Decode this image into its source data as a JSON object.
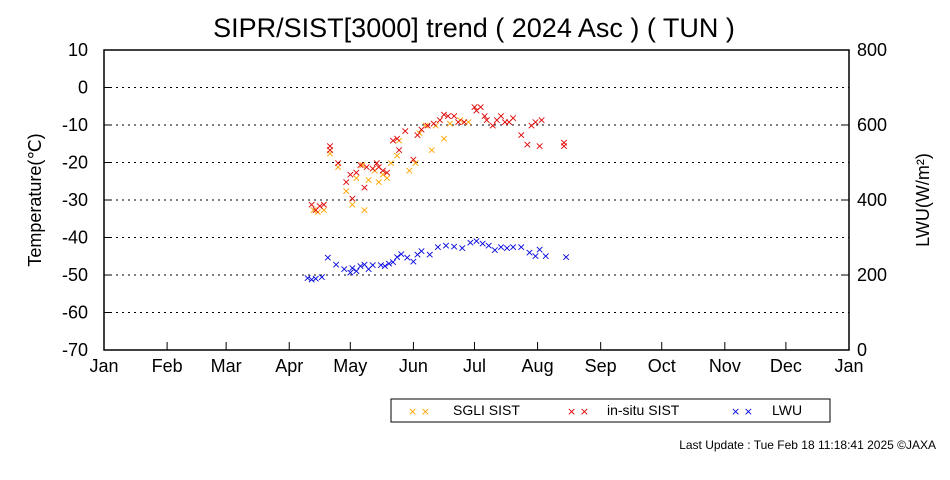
{
  "chart_data": {
    "type": "scatter",
    "title": "SIPR/SIST[3000] trend ( 2024 Asc ) ( TUN )",
    "ylabel": "Temperature(℃)",
    "y2label": "LWU(W/m²)",
    "ylim": [
      -70,
      10
    ],
    "y2lim": [
      0,
      800
    ],
    "yticks": [
      "10",
      "0",
      "-10",
      "-20",
      "-30",
      "-40",
      "-50",
      "-60",
      "-70"
    ],
    "y2ticks": [
      "800",
      "600",
      "400",
      "200",
      "0"
    ],
    "xlim": [
      "2024-01-01",
      "2025-01-01"
    ],
    "xticks": [
      {
        "label": "Jan",
        "date": "2024-01-01"
      },
      {
        "label": "Feb",
        "date": "2024-02-01"
      },
      {
        "label": "Mar",
        "date": "2024-03-01"
      },
      {
        "label": "Apr",
        "date": "2024-04-01"
      },
      {
        "label": "May",
        "date": "2024-05-01"
      },
      {
        "label": "Jun",
        "date": "2024-06-01"
      },
      {
        "label": "Jul",
        "date": "2024-07-01"
      },
      {
        "label": "Aug",
        "date": "2024-08-01"
      },
      {
        "label": "Sep",
        "date": "2024-09-01"
      },
      {
        "label": "Oct",
        "date": "2024-10-01"
      },
      {
        "label": "Nov",
        "date": "2024-11-01"
      },
      {
        "label": "Dec",
        "date": "2024-12-01"
      },
      {
        "label": "Jan",
        "date": "2025-01-01"
      }
    ],
    "grid": "horizontal dotted",
    "legend_position": "bottom",
    "marker": "×",
    "series": [
      {
        "name": "SGLI SIST",
        "color": "#ffa500",
        "axis": "left",
        "points": [
          [
            "2024-04-13",
            -32.5
          ],
          [
            "2024-04-15",
            -33
          ],
          [
            "2024-04-18",
            -32.5
          ],
          [
            "2024-04-21",
            -17.5
          ],
          [
            "2024-04-25",
            -21
          ],
          [
            "2024-04-29",
            -27.5
          ],
          [
            "2024-05-02",
            -31
          ],
          [
            "2024-05-04",
            -24
          ],
          [
            "2024-05-07",
            -20.5
          ],
          [
            "2024-05-08",
            -32.5
          ],
          [
            "2024-05-10",
            -24.5
          ],
          [
            "2024-05-13",
            -22
          ],
          [
            "2024-05-15",
            -25
          ],
          [
            "2024-05-17",
            -23
          ],
          [
            "2024-05-19",
            -24
          ],
          [
            "2024-05-21",
            -20
          ],
          [
            "2024-05-24",
            -18
          ],
          [
            "2024-05-25",
            -14
          ],
          [
            "2024-05-30",
            -22
          ],
          [
            "2024-06-02",
            -20
          ],
          [
            "2024-06-04",
            -12
          ],
          [
            "2024-06-07",
            -10
          ],
          [
            "2024-06-10",
            -16.5
          ],
          [
            "2024-06-12",
            -10
          ],
          [
            "2024-06-16",
            -13.5
          ],
          [
            "2024-06-19",
            -9.5
          ],
          [
            "2024-06-24",
            -8.5
          ],
          [
            "2024-06-28",
            -9
          ]
        ]
      },
      {
        "name": "in-situ SIST",
        "color": "#e00000",
        "axis": "left",
        "points": [
          [
            "2024-04-12",
            -31
          ],
          [
            "2024-04-14",
            -32.5
          ],
          [
            "2024-04-16",
            -31.5
          ],
          [
            "2024-04-18",
            -31
          ],
          [
            "2024-04-21",
            -16.5
          ],
          [
            "2024-04-21",
            -15.5
          ],
          [
            "2024-04-25",
            -20
          ],
          [
            "2024-04-29",
            -25
          ],
          [
            "2024-05-01",
            -23
          ],
          [
            "2024-05-02",
            -29.5
          ],
          [
            "2024-05-04",
            -22.5
          ],
          [
            "2024-05-06",
            -20.5
          ],
          [
            "2024-05-08",
            -26.5
          ],
          [
            "2024-05-09",
            -21
          ],
          [
            "2024-05-12",
            -21.5
          ],
          [
            "2024-05-14",
            -20
          ],
          [
            "2024-05-15",
            -21
          ],
          [
            "2024-05-17",
            -22
          ],
          [
            "2024-05-19",
            -22.5
          ],
          [
            "2024-05-22",
            -14
          ],
          [
            "2024-05-24",
            -13.5
          ],
          [
            "2024-05-25",
            -16.5
          ],
          [
            "2024-05-28",
            -11.5
          ],
          [
            "2024-06-01",
            -19
          ],
          [
            "2024-06-03",
            -12.5
          ],
          [
            "2024-06-05",
            -11
          ],
          [
            "2024-06-08",
            -10
          ],
          [
            "2024-06-11",
            -9.5
          ],
          [
            "2024-06-14",
            -8.5
          ],
          [
            "2024-06-16",
            -7
          ],
          [
            "2024-06-18",
            -7.5
          ],
          [
            "2024-06-21",
            -7.5
          ],
          [
            "2024-06-23",
            -9
          ],
          [
            "2024-06-26",
            -9
          ],
          [
            "2024-07-01",
            -5
          ],
          [
            "2024-07-02",
            -6
          ],
          [
            "2024-07-04",
            -5
          ],
          [
            "2024-07-06",
            -7.5
          ],
          [
            "2024-07-07",
            -8.5
          ],
          [
            "2024-07-10",
            -10
          ],
          [
            "2024-07-12",
            -8.5
          ],
          [
            "2024-07-14",
            -7.5
          ],
          [
            "2024-07-16",
            -9
          ],
          [
            "2024-07-18",
            -9
          ],
          [
            "2024-07-20",
            -8
          ],
          [
            "2024-07-24",
            -12.5
          ],
          [
            "2024-07-27",
            -15
          ],
          [
            "2024-07-29",
            -10
          ],
          [
            "2024-07-31",
            -9
          ],
          [
            "2024-08-02",
            -15.5
          ],
          [
            "2024-08-03",
            -8.5
          ],
          [
            "2024-08-14",
            -14.5
          ],
          [
            "2024-08-14",
            -15.5
          ]
        ]
      },
      {
        "name": "LWU",
        "color": "#0000e0",
        "axis": "right",
        "points": [
          [
            "2024-04-10",
            194
          ],
          [
            "2024-04-12",
            190
          ],
          [
            "2024-04-14",
            192
          ],
          [
            "2024-04-17",
            196
          ],
          [
            "2024-04-20",
            248
          ],
          [
            "2024-04-24",
            230
          ],
          [
            "2024-04-28",
            218
          ],
          [
            "2024-05-01",
            208
          ],
          [
            "2024-05-02",
            220
          ],
          [
            "2024-05-04",
            212
          ],
          [
            "2024-05-06",
            226
          ],
          [
            "2024-05-08",
            230
          ],
          [
            "2024-05-10",
            218
          ],
          [
            "2024-05-12",
            228
          ],
          [
            "2024-05-16",
            228
          ],
          [
            "2024-05-18",
            225
          ],
          [
            "2024-05-20",
            232
          ],
          [
            "2024-05-22",
            236
          ],
          [
            "2024-05-24",
            250
          ],
          [
            "2024-05-26",
            258
          ],
          [
            "2024-05-29",
            248
          ],
          [
            "2024-06-01",
            238
          ],
          [
            "2024-06-03",
            256
          ],
          [
            "2024-06-05",
            266
          ],
          [
            "2024-06-09",
            256
          ],
          [
            "2024-06-13",
            276
          ],
          [
            "2024-06-17",
            280
          ],
          [
            "2024-06-21",
            278
          ],
          [
            "2024-06-25",
            274
          ],
          [
            "2024-06-29",
            288
          ],
          [
            "2024-07-02",
            292
          ],
          [
            "2024-07-05",
            286
          ],
          [
            "2024-07-08",
            280
          ],
          [
            "2024-07-11",
            268
          ],
          [
            "2024-07-14",
            276
          ],
          [
            "2024-07-17",
            274
          ],
          [
            "2024-07-20",
            276
          ],
          [
            "2024-07-24",
            276
          ],
          [
            "2024-07-28",
            262
          ],
          [
            "2024-07-31",
            252
          ],
          [
            "2024-08-02",
            270
          ],
          [
            "2024-08-05",
            252
          ],
          [
            "2024-08-15",
            250
          ]
        ]
      }
    ]
  },
  "legend": {
    "items": [
      {
        "marks": "× ×",
        "label": "SGLI SIST",
        "color": "#ffa500"
      },
      {
        "marks": "× ×",
        "label": "in-situ SIST",
        "color": "#e00000"
      },
      {
        "marks": "× ×",
        "label": "LWU",
        "color": "#0000e0"
      }
    ]
  },
  "footer": {
    "last_update": "Last Update : Tue Feb 18 11:18:41 2025  ©JAXA"
  }
}
